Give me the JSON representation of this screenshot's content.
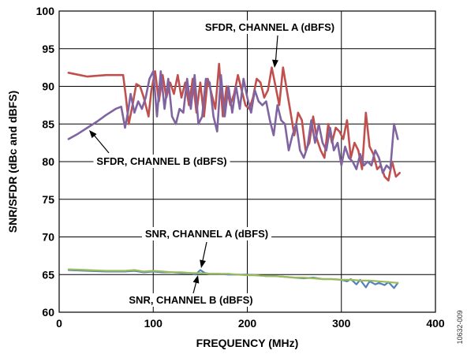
{
  "chart_data": {
    "type": "line",
    "title": "",
    "xlabel": "FREQUENCY (MHz)",
    "ylabel": "SNR/SFDR (dBc and dBFS)",
    "xlim": [
      0,
      400
    ],
    "ylim": [
      60,
      100
    ],
    "xticks": [
      0,
      100,
      200,
      300,
      400
    ],
    "yticks": [
      60,
      65,
      70,
      75,
      80,
      85,
      90,
      95,
      100
    ],
    "grid": true,
    "figure_id": "10632-009",
    "colors": {
      "sfdr_a": "#c0504d",
      "sfdr_b": "#8064a2",
      "snr_a": "#4f81bd",
      "snr_b": "#9bbb59"
    },
    "series": [
      {
        "name": "SFDR, CHANNEL A (dBFS)",
        "key": "sfdr_a",
        "x": [
          10,
          30,
          50,
          68,
          71,
          74,
          78,
          82,
          86,
          90,
          95,
          98,
          102,
          106,
          110,
          114,
          118,
          122,
          126,
          130,
          134,
          138,
          142,
          146,
          150,
          154,
          158,
          162,
          166,
          170,
          174,
          178,
          182,
          186,
          190,
          194,
          198,
          202,
          206,
          210,
          214,
          218,
          222,
          226,
          230,
          234,
          238,
          242,
          246,
          250,
          254,
          258,
          262,
          266,
          270,
          274,
          278,
          282,
          286,
          290,
          294,
          298,
          302,
          306,
          310,
          314,
          318,
          322,
          326,
          330,
          334,
          338,
          342,
          346,
          350,
          354,
          358,
          362
        ],
        "y": [
          91.8,
          91.3,
          91.5,
          91.5,
          88.5,
          85.0,
          87.5,
          90.3,
          90.0,
          88.5,
          86.0,
          89.5,
          92.0,
          88.0,
          91.5,
          88.5,
          90.5,
          89.0,
          91.5,
          88.5,
          90.5,
          87.5,
          91.0,
          86.5,
          90.5,
          86.0,
          91.0,
          89.0,
          87.0,
          93.0,
          86.0,
          90.0,
          87.5,
          89.0,
          91.5,
          89.5,
          87.5,
          87.0,
          88.5,
          91.0,
          90.5,
          88.5,
          89.5,
          92.5,
          90.0,
          87.5,
          92.5,
          89.5,
          86.5,
          83.5,
          86.5,
          85.5,
          81.5,
          82.5,
          86.0,
          83.0,
          81.5,
          80.5,
          85.0,
          82.5,
          84.5,
          84.0,
          83.0,
          85.5,
          80.5,
          82.5,
          81.5,
          79.0,
          86.5,
          82.0,
          81.0,
          79.0,
          79.5,
          78.0,
          77.5,
          80.0,
          78.0,
          78.5
        ]
      },
      {
        "name": "SFDR, CHANNEL B (dBFS)",
        "key": "sfdr_b",
        "x": [
          10,
          20,
          30,
          40,
          50,
          60,
          66,
          70,
          73,
          76,
          80,
          84,
          88,
          92,
          96,
          100,
          104,
          108,
          112,
          116,
          120,
          124,
          128,
          132,
          136,
          140,
          144,
          148,
          152,
          156,
          160,
          164,
          168,
          172,
          176,
          180,
          184,
          188,
          192,
          196,
          200,
          204,
          208,
          212,
          216,
          220,
          224,
          228,
          232,
          236,
          240,
          244,
          248,
          252,
          256,
          260,
          264,
          268,
          272,
          276,
          280,
          284,
          288,
          292,
          296,
          300,
          304,
          308,
          312,
          316,
          320,
          324,
          328,
          332,
          336,
          340,
          344,
          348,
          352,
          356,
          360
        ],
        "y": [
          83.0,
          83.7,
          84.5,
          85.3,
          86.2,
          87.0,
          87.3,
          84.5,
          86.5,
          89.0,
          86.5,
          88.0,
          87.0,
          88.5,
          91.0,
          92.0,
          86.0,
          92.0,
          87.0,
          91.0,
          86.0,
          85.0,
          87.0,
          86.5,
          91.0,
          87.0,
          91.5,
          85.0,
          86.0,
          91.0,
          90.5,
          86.0,
          84.0,
          91.5,
          86.0,
          90.0,
          86.5,
          90.0,
          87.0,
          91.0,
          88.5,
          86.5,
          89.5,
          88.0,
          87.5,
          88.0,
          85.5,
          83.5,
          87.5,
          85.5,
          85.0,
          81.5,
          83.5,
          85.0,
          81.5,
          80.5,
          82.0,
          85.5,
          82.5,
          85.0,
          82.5,
          81.5,
          84.5,
          81.5,
          82.5,
          79.5,
          82.0,
          80.5,
          80.0,
          79.0,
          81.0,
          79.5,
          80.0,
          79.5,
          81.5,
          80.5,
          78.5,
          79.5,
          79.0,
          85.0,
          83.0
        ]
      },
      {
        "name": "SNR, CHANNEL A (dBFS)",
        "key": "snr_a",
        "x": [
          10,
          30,
          50,
          70,
          80,
          90,
          100,
          110,
          120,
          130,
          140,
          145,
          150,
          155,
          160,
          170,
          180,
          190,
          200,
          210,
          220,
          230,
          240,
          250,
          260,
          270,
          280,
          290,
          300,
          306,
          310,
          316,
          320,
          326,
          330,
          336,
          340,
          346,
          350,
          356,
          360
        ],
        "y": [
          65.6,
          65.5,
          65.4,
          65.4,
          65.5,
          65.3,
          65.4,
          65.3,
          65.3,
          65.2,
          65.2,
          65.0,
          65.6,
          65.2,
          65.1,
          65.1,
          65.0,
          65.0,
          65.0,
          64.9,
          64.8,
          64.8,
          64.7,
          64.6,
          64.5,
          64.6,
          64.4,
          64.4,
          64.3,
          64.1,
          64.4,
          63.7,
          64.3,
          63.3,
          64.1,
          63.7,
          63.9,
          63.6,
          64.0,
          63.2,
          63.9
        ]
      },
      {
        "name": "SNR, CHANNEL B (dBFS)",
        "key": "snr_b",
        "x": [
          10,
          30,
          50,
          70,
          80,
          90,
          100,
          110,
          120,
          130,
          140,
          150,
          160,
          170,
          180,
          190,
          200,
          210,
          220,
          230,
          240,
          250,
          260,
          270,
          280,
          290,
          300,
          310,
          320,
          330,
          340,
          350,
          360
        ],
        "y": [
          65.7,
          65.6,
          65.5,
          65.5,
          65.6,
          65.4,
          65.5,
          65.4,
          65.3,
          65.3,
          65.2,
          65.2,
          65.1,
          65.1,
          65.1,
          65.0,
          64.9,
          64.9,
          64.8,
          64.8,
          64.7,
          64.6,
          64.6,
          64.5,
          64.4,
          64.4,
          64.3,
          64.3,
          64.2,
          64.2,
          64.1,
          64.0,
          63.9
        ]
      }
    ],
    "annotations": [
      {
        "text": "SFDR, CHANNEL A (dBFS)",
        "key": "sfdr_a"
      },
      {
        "text": "SFDR, CHANNEL B (dBFS)",
        "key": "sfdr_b"
      },
      {
        "text": "SNR, CHANNEL A (dBFS)",
        "key": "snr_a"
      },
      {
        "text": "SNR, CHANNEL B (dBFS)",
        "key": "snr_b"
      }
    ]
  }
}
